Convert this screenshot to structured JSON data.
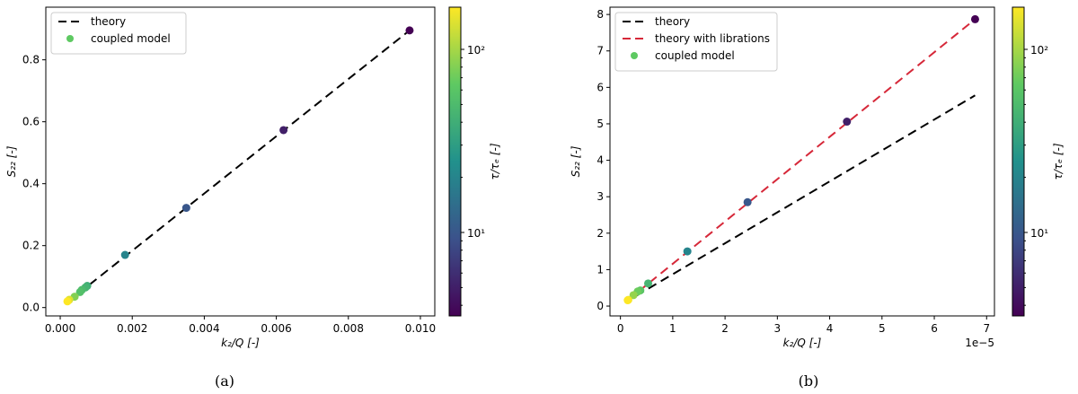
{
  "chart_data": [
    {
      "type": "scatter",
      "panel_label": "(a)",
      "xlabel": "k₂/Q [-]",
      "ylabel": "S₂₂ [-]",
      "xlim": [
        -0.0004,
        0.0104
      ],
      "ylim": [
        -0.027,
        0.97
      ],
      "xticks": [
        "0.000",
        "0.002",
        "0.004",
        "0.006",
        "0.008",
        "0.010"
      ],
      "xtick_values": [
        0,
        0.002,
        0.004,
        0.006,
        0.008,
        0.01
      ],
      "yticks": [
        "0.0",
        "0.2",
        "0.4",
        "0.6",
        "0.8"
      ],
      "ytick_values": [
        0,
        0.2,
        0.4,
        0.6,
        0.8
      ],
      "legend": {
        "placement": "top-left",
        "entries": [
          "theory",
          "coupled model"
        ]
      },
      "lines": [
        {
          "name": "theory",
          "color": "#000000",
          "x": [
            0.0005,
            0.0097
          ],
          "y": [
            0.045,
            0.895
          ]
        }
      ],
      "points": {
        "name": "coupled model",
        "x": [
          0.0097,
          0.0062,
          0.0035,
          0.0018,
          0.00075,
          0.0007,
          0.0006,
          0.00055,
          0.0004,
          0.00025,
          0.0002
        ],
        "y": [
          0.895,
          0.573,
          0.322,
          0.17,
          0.07,
          0.065,
          0.057,
          0.05,
          0.035,
          0.025,
          0.02
        ],
        "tau": [
          3.5,
          5,
          10,
          20,
          40,
          45,
          50,
          55,
          80,
          140,
          170
        ]
      },
      "colorbar": {
        "label": "τ/τₑ [-]",
        "scale": "log",
        "range": [
          3.5,
          170
        ],
        "colormap": "viridis",
        "ticks": [
          {
            "v": 10,
            "t": "10¹"
          },
          {
            "v": 100,
            "t": "10²"
          }
        ]
      }
    },
    {
      "type": "scatter",
      "panel_label": "(b)",
      "xlabel": "k₂/Q [-]",
      "ylabel": "S₂₂ [-]",
      "x_offset_text": "1e−5",
      "xlim": [
        -0.2,
        7.15
      ],
      "ylim": [
        -0.27,
        8.2
      ],
      "xticks": [
        "0",
        "1",
        "2",
        "3",
        "4",
        "5",
        "6",
        "7"
      ],
      "xtick_values": [
        0,
        1,
        2,
        3,
        4,
        5,
        6,
        7
      ],
      "yticks": [
        "0",
        "1",
        "2",
        "3",
        "4",
        "5",
        "6",
        "7",
        "8"
      ],
      "ytick_values": [
        0,
        1,
        2,
        3,
        4,
        5,
        6,
        7,
        8
      ],
      "legend": {
        "placement": "top-left",
        "entries": [
          "theory",
          "theory with librations",
          "coupled model"
        ]
      },
      "lines": [
        {
          "name": "theory",
          "color": "#000000",
          "x": [
            0.3,
            6.78
          ],
          "y": [
            0.28,
            5.78
          ]
        },
        {
          "name": "theory with librations",
          "color": "#d62839",
          "x": [
            0.13,
            6.78
          ],
          "y": [
            0.15,
            7.87
          ]
        }
      ],
      "points": {
        "name": "coupled model",
        "x": [
          6.78,
          4.33,
          2.43,
          1.28,
          0.53,
          0.38,
          0.33,
          0.25,
          0.15,
          0.14
        ],
        "y": [
          7.87,
          5.06,
          2.85,
          1.5,
          0.62,
          0.43,
          0.4,
          0.3,
          0.17,
          0.16
        ],
        "tau": [
          3.5,
          5,
          10,
          20,
          45,
          60,
          70,
          90,
          150,
          170
        ]
      },
      "colorbar": {
        "label": "τ/τₑ [-]",
        "scale": "log",
        "range": [
          3.5,
          170
        ],
        "colormap": "viridis",
        "ticks": [
          {
            "v": 10,
            "t": "10¹"
          },
          {
            "v": 100,
            "t": "10²"
          }
        ]
      }
    }
  ]
}
